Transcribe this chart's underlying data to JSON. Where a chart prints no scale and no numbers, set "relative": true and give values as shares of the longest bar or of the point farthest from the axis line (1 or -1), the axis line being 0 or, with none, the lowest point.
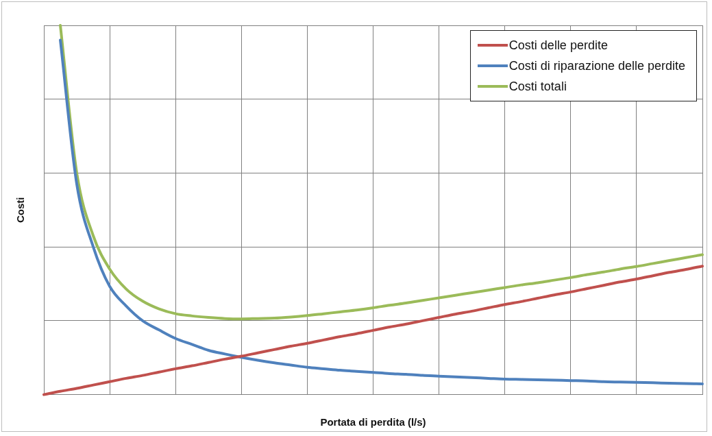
{
  "chart_data": {
    "type": "line",
    "relative": true,
    "xlabel": "Portata di perdita (l/s)",
    "ylabel": "Costi",
    "grid": true,
    "legend": "top right",
    "marker": "none",
    "line_style": "solid",
    "categories": [
      null,
      null,
      null,
      null,
      null,
      null,
      null,
      null,
      null,
      null,
      null,
      null,
      null,
      null,
      null,
      null,
      null,
      null,
      null,
      null,
      null,
      null,
      null,
      null,
      null,
      null,
      null,
      null,
      null,
      null,
      null,
      null,
      null,
      null,
      null,
      null,
      null,
      null,
      null,
      null,
      null
    ],
    "series": [
      {
        "name": "Costi delle perdite",
        "color": "#c0504d",
        "values": [
          0,
          0.009,
          0.017,
          0.026,
          0.035,
          0.044,
          0.052,
          0.061,
          0.07,
          0.078,
          0.087,
          0.096,
          0.104,
          0.113,
          0.122,
          0.131,
          0.139,
          0.148,
          0.157,
          0.165,
          0.174,
          0.183,
          0.191,
          0.2,
          0.209,
          0.218,
          0.226,
          0.235,
          0.244,
          0.252,
          0.261,
          0.27,
          0.278,
          0.287,
          0.296,
          0.305,
          0.313,
          0.322,
          0.331,
          0.339,
          0.348
        ]
      },
      {
        "name": "Costi di riparazione delle perdite",
        "color": "#4f81bd",
        "values": [
          null,
          0.96,
          0.57,
          0.4,
          0.293,
          0.24,
          0.2,
          0.175,
          0.152,
          0.136,
          0.12,
          0.11,
          0.101,
          0.093,
          0.086,
          0.08,
          0.074,
          0.07,
          0.066,
          0.063,
          0.06,
          0.057,
          0.055,
          0.052,
          0.05,
          0.048,
          0.046,
          0.044,
          0.042,
          0.041,
          0.04,
          0.039,
          0.038,
          0.037,
          0.035,
          0.034,
          0.033,
          0.032,
          0.031,
          0.03,
          0.029
        ]
      },
      {
        "name": "Costi totali",
        "color": "#9bbb59",
        "values": [
          null,
          1,
          0.6,
          0.43,
          0.34,
          0.286,
          0.253,
          0.232,
          0.219,
          0.213,
          0.209,
          0.206,
          0.205,
          0.206,
          0.207,
          0.21,
          0.214,
          0.219,
          0.224,
          0.229,
          0.235,
          0.242,
          0.248,
          0.255,
          0.262,
          0.269,
          0.276,
          0.283,
          0.29,
          0.297,
          0.303,
          0.31,
          0.317,
          0.325,
          0.332,
          0.34,
          0.347,
          0.355,
          0.363,
          0.371,
          0.379
        ]
      }
    ]
  }
}
